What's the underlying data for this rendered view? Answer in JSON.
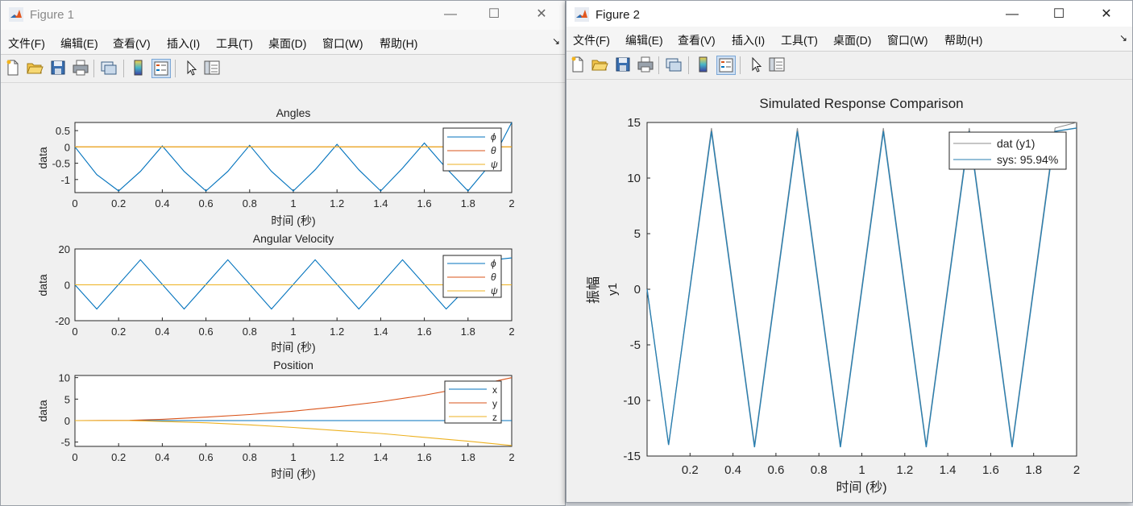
{
  "figure1": {
    "title": "Figure 1",
    "controls": {
      "minimize": "—",
      "maximize": "☐",
      "close": "✕"
    },
    "menu": [
      "文件(F)",
      "编辑(E)",
      "查看(V)",
      "插入(I)",
      "工具(T)",
      "桌面(D)",
      "窗口(W)",
      "帮助(H)"
    ],
    "toolbar_icons": [
      "new-file-icon",
      "open-folder-icon",
      "save-icon",
      "print-icon",
      "link-plot-icon",
      "colorbar-icon",
      "legend-icon",
      "pointer-icon",
      "property-inspector-icon"
    ],
    "axes": [
      {
        "title": "Angles",
        "ylabel": "data",
        "xlabel": "时间 (秒)",
        "xticks": [
          "0",
          "0.2",
          "0.4",
          "0.6",
          "0.8",
          "1",
          "1.2",
          "1.4",
          "1.6",
          "1.8",
          "2"
        ],
        "yticks": [
          "0.5",
          "0",
          "-0.5",
          "-1"
        ],
        "legend": [
          "ϕ",
          "θ",
          "ψ"
        ]
      },
      {
        "title": "Angular Velocity",
        "ylabel": "data",
        "xlabel": "时间 (秒)",
        "xticks": [
          "0",
          "0.2",
          "0.4",
          "0.6",
          "0.8",
          "1",
          "1.2",
          "1.4",
          "1.6",
          "1.8",
          "2"
        ],
        "yticks": [
          "20",
          "0",
          "-20"
        ],
        "legend": [
          "ϕ",
          "θ",
          "ψ"
        ]
      },
      {
        "title": "Position",
        "ylabel": "data",
        "xlabel": "时间 (秒)",
        "xticks": [
          "0",
          "0.2",
          "0.4",
          "0.6",
          "0.8",
          "1",
          "1.2",
          "1.4",
          "1.6",
          "1.8",
          "2"
        ],
        "yticks": [
          "10",
          "5",
          "0",
          "-5"
        ],
        "legend": [
          "x",
          "y",
          "z"
        ]
      }
    ]
  },
  "figure2": {
    "title": "Figure 2",
    "controls": {
      "minimize": "—",
      "maximize": "☐",
      "close": "✕"
    },
    "menu": [
      "文件(F)",
      "编辑(E)",
      "查看(V)",
      "插入(I)",
      "工具(T)",
      "桌面(D)",
      "窗口(W)",
      "帮助(H)"
    ],
    "axes": {
      "title": "Simulated Response Comparison",
      "ylabel_outer": "振幅",
      "ylabel_inner": "y1",
      "xlabel": "时间 (秒)",
      "xticks": [
        "0.2",
        "0.4",
        "0.6",
        "0.8",
        "1",
        "1.2",
        "1.4",
        "1.6",
        "1.8",
        "2"
      ],
      "yticks": [
        "15",
        "10",
        "5",
        "0",
        "-5",
        "-10",
        "-15"
      ],
      "legend": [
        "dat (y1)",
        "sys: 95.94%"
      ]
    }
  },
  "colors": {
    "blue": "#0072BD",
    "orange": "#D95319",
    "yellow": "#EDB120",
    "gray": "#8c8c8c",
    "teal": "#2a7fb0"
  },
  "chart_data": [
    {
      "type": "line",
      "title": "Angles",
      "xlabel": "时间 (秒)",
      "ylabel": "data",
      "xlim": [
        0,
        2
      ],
      "ylim": [
        -1.4,
        0.75
      ],
      "series": [
        {
          "name": "ϕ",
          "x": [
            0,
            0.1,
            0.2,
            0.3,
            0.4,
            0.5,
            0.6,
            0.7,
            0.8,
            0.9,
            1.0,
            1.1,
            1.2,
            1.3,
            1.4,
            1.5,
            1.6,
            1.7,
            1.8,
            1.9,
            2.0
          ],
          "values": [
            0,
            -0.85,
            -1.35,
            -0.75,
            0.03,
            -0.75,
            -1.35,
            -0.75,
            0.05,
            -0.75,
            -1.35,
            -0.7,
            0.08,
            -0.7,
            -1.35,
            -0.65,
            0.12,
            -0.65,
            -1.35,
            -0.55,
            0.75
          ]
        },
        {
          "name": "θ",
          "x": [
            0,
            2
          ],
          "values": [
            0,
            0
          ]
        },
        {
          "name": "ψ",
          "x": [
            0,
            2
          ],
          "values": [
            0,
            0
          ]
        }
      ]
    },
    {
      "type": "line",
      "title": "Angular Velocity",
      "xlabel": "时间 (秒)",
      "ylabel": "data",
      "xlim": [
        0,
        2
      ],
      "ylim": [
        -20,
        20
      ],
      "series": [
        {
          "name": "ϕ",
          "x": [
            0,
            0.1,
            0.3,
            0.5,
            0.7,
            0.9,
            1.1,
            1.3,
            1.5,
            1.7,
            1.92,
            2.0
          ],
          "values": [
            0,
            -13.5,
            14,
            -13.5,
            14,
            -13.5,
            14,
            -13.5,
            14,
            -13.5,
            14,
            15
          ]
        },
        {
          "name": "θ",
          "x": [
            0,
            2
          ],
          "values": [
            0,
            0
          ]
        },
        {
          "name": "ψ",
          "x": [
            0,
            2
          ],
          "values": [
            0,
            0
          ]
        }
      ]
    },
    {
      "type": "line",
      "title": "Position",
      "xlabel": "时间 (秒)",
      "ylabel": "data",
      "xlim": [
        0,
        2
      ],
      "ylim": [
        -6,
        10.5
      ],
      "series": [
        {
          "name": "x",
          "x": [
            0,
            2
          ],
          "values": [
            0,
            0
          ]
        },
        {
          "name": "y",
          "x": [
            0,
            0.25,
            0.4,
            0.6,
            0.8,
            1.0,
            1.2,
            1.4,
            1.6,
            1.8,
            2.0
          ],
          "values": [
            0,
            0.05,
            0.3,
            0.8,
            1.4,
            2.2,
            3.2,
            4.4,
            5.9,
            7.8,
            10
          ]
        },
        {
          "name": "z",
          "x": [
            0,
            0.25,
            0.4,
            0.6,
            0.8,
            1.0,
            1.2,
            1.4,
            1.6,
            1.8,
            2.0
          ],
          "values": [
            0,
            0,
            -0.2,
            -0.5,
            -1.0,
            -1.6,
            -2.3,
            -3.0,
            -3.9,
            -4.8,
            -5.8
          ]
        }
      ]
    },
    {
      "type": "line",
      "title": "Simulated Response Comparison",
      "xlabel": "时间 (秒)",
      "ylabel": "y1",
      "xlim": [
        0,
        2
      ],
      "ylim": [
        -15,
        15
      ],
      "series": [
        {
          "name": "dat (y1)",
          "x": [
            0,
            0.1,
            0.3,
            0.5,
            0.7,
            0.9,
            1.1,
            1.3,
            1.5,
            1.7,
            1.9,
            2.0
          ],
          "values": [
            0,
            -14,
            14.5,
            -14,
            14.5,
            -14,
            14.5,
            -14,
            14.5,
            -14,
            14.5,
            15
          ]
        },
        {
          "name": "sys: 95.94%",
          "x": [
            0,
            0.1,
            0.3,
            0.5,
            0.7,
            0.9,
            1.1,
            1.3,
            1.5,
            1.7,
            1.9,
            2.0
          ],
          "values": [
            0,
            -14,
            14.2,
            -14.2,
            14.2,
            -14.2,
            14.2,
            -14.2,
            14.2,
            -14.2,
            14.2,
            14.5
          ]
        }
      ]
    }
  ]
}
